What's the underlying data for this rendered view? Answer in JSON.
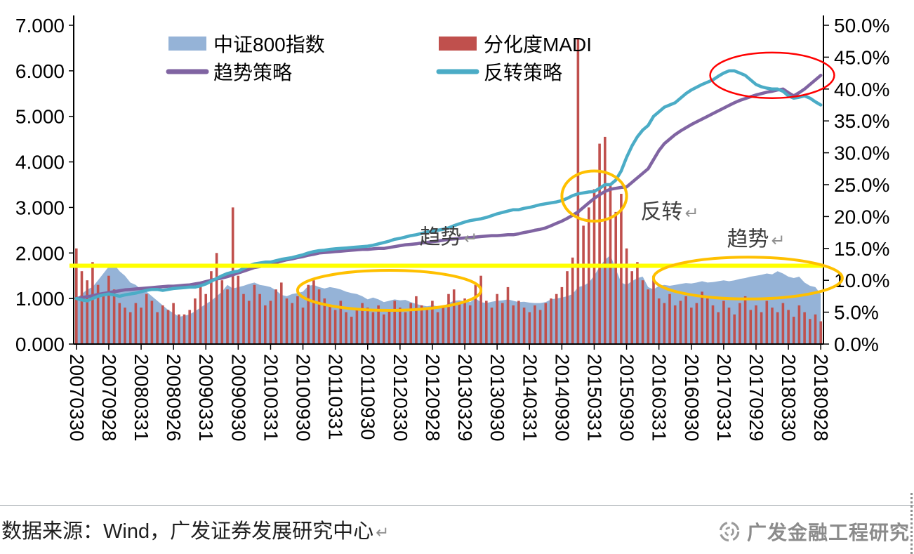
{
  "footer": {
    "source_text": "数据来源：Wind，广发证券发展研究中心",
    "return_mark": "↵",
    "logo_icon": "gf-circular-logo",
    "logo_text": "广发金融工程研究"
  },
  "chart_data": {
    "type": "combo",
    "title": "",
    "x_start": "2007-03",
    "x_end": "2018-09",
    "x_frequency": "monthly",
    "x_tick_every": 6,
    "x_tick_labels": [
      "20070330",
      "20070928",
      "20080331",
      "20080926",
      "20090331",
      "20090930",
      "20100331",
      "20100930",
      "20110331",
      "20110930",
      "20120330",
      "20120928",
      "20130329",
      "20130930",
      "20140331",
      "20140930",
      "20150331",
      "20150930",
      "20160331",
      "20160930",
      "20170331",
      "20170929",
      "20180330",
      "20180928"
    ],
    "left_axis": {
      "min": 0,
      "max": 7,
      "labels": [
        "0.000",
        "1.000",
        "2.000",
        "3.000",
        "4.000",
        "5.000",
        "6.000",
        "7.000"
      ]
    },
    "right_axis": {
      "min": 0,
      "max": 50,
      "labels": [
        "0.0%",
        "5.0%",
        "10.0%",
        "15.0%",
        "20.0%",
        "25.0%",
        "30.0%",
        "35.0%",
        "40.0%",
        "45.0%",
        "50.0%"
      ]
    },
    "grid": "off",
    "legend": {
      "position": "top-inside",
      "items": [
        {
          "label": "中证800指数",
          "swatch": "rect",
          "color": "#95B3D7"
        },
        {
          "label": "分化度MADI",
          "swatch": "rect",
          "color": "#C0504D"
        },
        {
          "label": "趋势策略",
          "swatch": "line",
          "color": "#8064A2"
        },
        {
          "label": "反转策略",
          "swatch": "line",
          "color": "#4BACC6"
        }
      ]
    },
    "series": [
      {
        "name": "中证800指数",
        "type": "area",
        "axis": "left",
        "color": "#95B3D7",
        "values": [
          1.0,
          1.1,
          1.2,
          1.25,
          1.4,
          1.55,
          1.7,
          1.75,
          1.6,
          1.5,
          1.35,
          1.3,
          1.2,
          1.15,
          1.05,
          0.95,
          0.85,
          0.75,
          0.68,
          0.6,
          0.62,
          0.65,
          0.72,
          0.8,
          0.88,
          0.95,
          1.05,
          1.15,
          1.3,
          1.22,
          1.25,
          1.28,
          1.32,
          1.35,
          1.3,
          1.28,
          1.25,
          1.18,
          1.08,
          1.05,
          1.1,
          1.12,
          1.15,
          1.28,
          1.3,
          1.25,
          1.22,
          1.25,
          1.23,
          1.2,
          1.15,
          1.12,
          1.1,
          1.05,
          0.98,
          1.02,
          0.98,
          0.92,
          0.95,
          0.98,
          0.96,
          0.97,
          0.92,
          0.88,
          0.85,
          0.83,
          0.85,
          0.83,
          0.82,
          0.9,
          0.95,
          0.96,
          0.94,
          0.92,
          1.0,
          0.92,
          0.9,
          0.93,
          0.95,
          0.96,
          0.98,
          0.95,
          0.92,
          0.93,
          0.91,
          0.9,
          0.9,
          0.92,
          0.98,
          1.0,
          1.02,
          1.05,
          1.1,
          1.25,
          1.28,
          1.35,
          1.5,
          1.7,
          1.85,
          1.95,
          1.65,
          1.35,
          1.3,
          1.38,
          1.45,
          1.48,
          1.25,
          1.2,
          1.28,
          1.3,
          1.28,
          1.3,
          1.32,
          1.34,
          1.33,
          1.35,
          1.38,
          1.35,
          1.36,
          1.38,
          1.4,
          1.38,
          1.4,
          1.43,
          1.45,
          1.48,
          1.5,
          1.52,
          1.55,
          1.53,
          1.6,
          1.55,
          1.48,
          1.45,
          1.48,
          1.35,
          1.28,
          1.25,
          1.1
        ]
      },
      {
        "name": "分化度MADI",
        "type": "bar",
        "axis": "left",
        "color": "#C0504D",
        "values": [
          2.1,
          1.6,
          1.4,
          1.8,
          1.3,
          1.1,
          1.5,
          1.2,
          0.9,
          0.8,
          0.7,
          0.9,
          0.8,
          1.1,
          0.95,
          0.7,
          0.85,
          0.75,
          0.9,
          0.65,
          0.65,
          0.75,
          1.0,
          1.3,
          1.1,
          1.6,
          2.0,
          1.4,
          1.2,
          3.0,
          1.5,
          1.1,
          0.95,
          1.3,
          1.1,
          0.85,
          0.95,
          1.2,
          1.35,
          1.0,
          0.9,
          1.05,
          0.8,
          1.3,
          1.4,
          1.2,
          1.0,
          0.85,
          0.75,
          0.95,
          0.7,
          0.6,
          0.75,
          0.9,
          0.8,
          0.7,
          0.85,
          0.65,
          0.75,
          0.95,
          0.8,
          0.7,
          0.9,
          1.05,
          0.85,
          0.75,
          0.95,
          0.7,
          0.8,
          1.1,
          1.2,
          0.9,
          1.0,
          0.85,
          1.3,
          1.5,
          0.95,
          0.8,
          1.1,
          0.9,
          1.25,
          0.85,
          0.95,
          0.8,
          0.7,
          0.85,
          0.75,
          0.9,
          1.0,
          1.1,
          1.25,
          1.6,
          1.9,
          6.7,
          2.6,
          3.0,
          3.4,
          4.4,
          4.55,
          3.5,
          2.9,
          3.3,
          2.1,
          1.6,
          1.8,
          1.4,
          1.2,
          1.5,
          1.0,
          0.9,
          1.1,
          0.85,
          0.95,
          1.05,
          0.8,
          0.9,
          1.15,
          1.0,
          0.85,
          0.7,
          0.95,
          0.8,
          0.65,
          0.9,
          1.05,
          0.75,
          0.85,
          0.7,
          0.95,
          0.8,
          0.7,
          0.9,
          0.75,
          0.6,
          0.85,
          0.7,
          0.55,
          0.65,
          0.5
        ]
      },
      {
        "name": "趋势策略",
        "type": "line",
        "axis": "left",
        "color": "#8064A2",
        "values": [
          1.0,
          1.02,
          1.04,
          1.06,
          1.09,
          1.11,
          1.13,
          1.15,
          1.17,
          1.19,
          1.2,
          1.21,
          1.22,
          1.23,
          1.24,
          1.25,
          1.26,
          1.27,
          1.27,
          1.28,
          1.29,
          1.3,
          1.32,
          1.34,
          1.37,
          1.4,
          1.43,
          1.45,
          1.48,
          1.52,
          1.56,
          1.6,
          1.64,
          1.68,
          1.7,
          1.73,
          1.76,
          1.79,
          1.82,
          1.85,
          1.87,
          1.9,
          1.92,
          1.95,
          1.97,
          2.0,
          2.01,
          2.02,
          2.03,
          2.04,
          2.05,
          2.06,
          2.07,
          2.08,
          2.08,
          2.09,
          2.1,
          2.1,
          2.12,
          2.14,
          2.16,
          2.18,
          2.19,
          2.2,
          2.22,
          2.23,
          2.25,
          2.26,
          2.28,
          2.3,
          2.31,
          2.32,
          2.33,
          2.34,
          2.35,
          2.36,
          2.37,
          2.38,
          2.38,
          2.39,
          2.4,
          2.4,
          2.42,
          2.45,
          2.47,
          2.5,
          2.52,
          2.55,
          2.6,
          2.65,
          2.7,
          2.76,
          2.83,
          2.9,
          3.0,
          3.1,
          3.2,
          3.28,
          3.35,
          3.4,
          3.42,
          3.44,
          3.45,
          3.55,
          3.65,
          3.75,
          3.85,
          4.05,
          4.25,
          4.4,
          4.5,
          4.6,
          4.68,
          4.75,
          4.82,
          4.88,
          4.94,
          5.0,
          5.06,
          5.12,
          5.18,
          5.24,
          5.3,
          5.35,
          5.39,
          5.43,
          5.47,
          5.5,
          5.53,
          5.55,
          5.58,
          5.6,
          5.52,
          5.45,
          5.52,
          5.6,
          5.7,
          5.8,
          5.9
        ]
      },
      {
        "name": "反转策略",
        "type": "line",
        "axis": "left",
        "color": "#4BACC6",
        "values": [
          1.0,
          0.97,
          0.95,
          1.0,
          1.05,
          1.08,
          1.1,
          1.08,
          1.05,
          1.08,
          1.1,
          1.12,
          1.15,
          1.18,
          1.2,
          1.2,
          1.18,
          1.2,
          1.22,
          1.23,
          1.24,
          1.25,
          1.25,
          1.28,
          1.32,
          1.38,
          1.44,
          1.5,
          1.55,
          1.58,
          1.6,
          1.66,
          1.72,
          1.76,
          1.78,
          1.8,
          1.8,
          1.83,
          1.86,
          1.88,
          1.9,
          1.93,
          1.96,
          2.0,
          2.03,
          2.05,
          2.06,
          2.08,
          2.09,
          2.1,
          2.11,
          2.12,
          2.13,
          2.14,
          2.15,
          2.17,
          2.2,
          2.23,
          2.26,
          2.3,
          2.32,
          2.35,
          2.38,
          2.4,
          2.43,
          2.46,
          2.48,
          2.5,
          2.52,
          2.55,
          2.6,
          2.64,
          2.68,
          2.71,
          2.73,
          2.75,
          2.78,
          2.82,
          2.86,
          2.89,
          2.92,
          2.95,
          2.95,
          2.98,
          3.0,
          3.03,
          3.06,
          3.08,
          3.1,
          3.12,
          3.15,
          3.2,
          3.26,
          3.3,
          3.32,
          3.34,
          3.35,
          3.42,
          3.5,
          3.5,
          3.6,
          3.8,
          4.1,
          4.35,
          4.55,
          4.7,
          4.8,
          5.0,
          5.1,
          5.2,
          5.25,
          5.3,
          5.4,
          5.5,
          5.58,
          5.64,
          5.7,
          5.75,
          5.8,
          5.88,
          5.95,
          6.0,
          6.0,
          5.95,
          5.9,
          5.8,
          5.7,
          5.65,
          5.62,
          5.6,
          5.6,
          5.55,
          5.45,
          5.4,
          5.42,
          5.45,
          5.4,
          5.32,
          5.25
        ]
      }
    ],
    "annotations": {
      "reference_line": {
        "value": 1.72,
        "color": "#FFFF00",
        "width": 6
      },
      "ellipses": [
        {
          "cx_month": 58,
          "cy_value": 1.18,
          "rx_months": 17,
          "ry_value": 0.44,
          "color": "#FFC000",
          "width": 4
        },
        {
          "cx_month": 96,
          "cy_value": 3.25,
          "rx_months": 6,
          "ry_value": 0.55,
          "color": "#FFC000",
          "width": 4
        },
        {
          "cx_month": 124.5,
          "cy_value": 1.45,
          "rx_months": 17.5,
          "ry_value": 0.46,
          "color": "#FFC000",
          "width": 4
        },
        {
          "cx_month": 129,
          "cy_value": 5.9,
          "rx_months": 11.5,
          "ry_value": 0.5,
          "color": "#FF0000",
          "width": 2.5
        }
      ],
      "labels": [
        {
          "text": "趋势",
          "mark": "↵",
          "x_month": 69,
          "y_value": 2.2
        },
        {
          "text": "反转",
          "mark": "↵",
          "x_month": 110,
          "y_value": 2.75
        },
        {
          "text": "趋势",
          "mark": "↵",
          "x_month": 126,
          "y_value": 2.15
        }
      ]
    }
  }
}
